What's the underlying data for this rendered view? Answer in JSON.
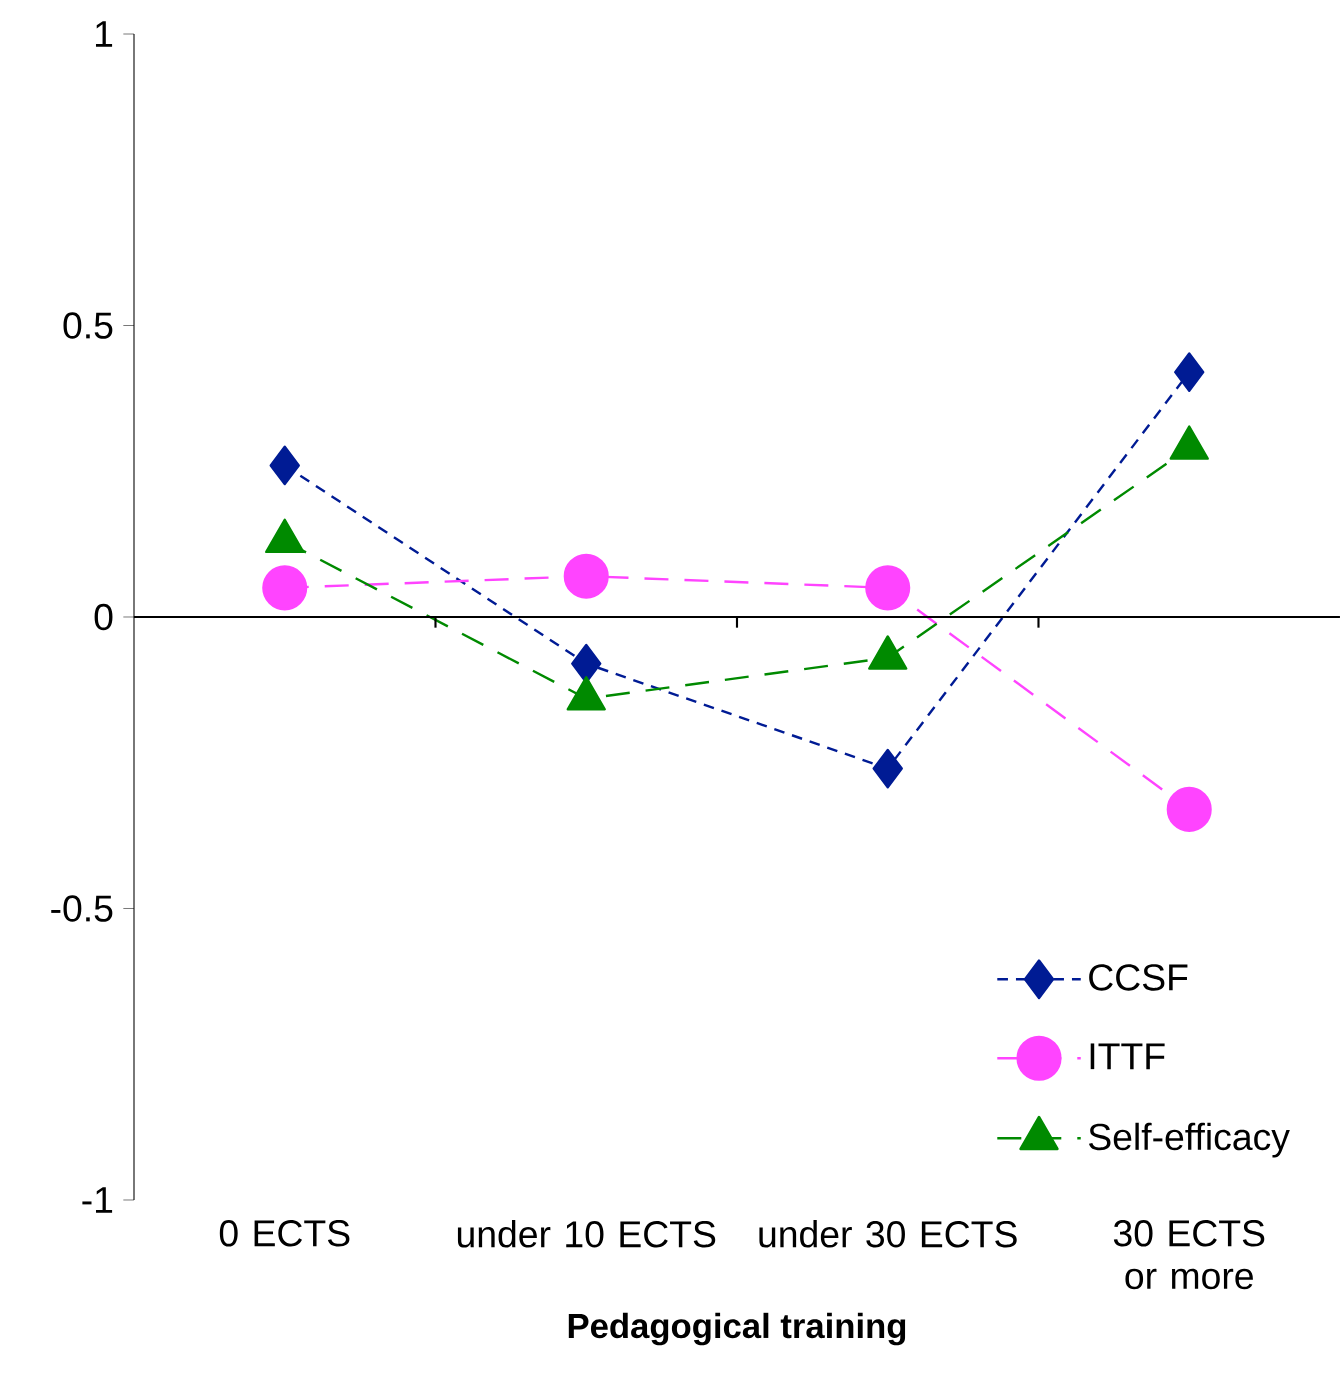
{
  "chart_data": {
    "type": "line",
    "xlabel": "Pedagogical training",
    "categories": [
      "0 ECTS",
      "under 10 ECTS",
      "under 30 ECTS",
      "30 ECTS or more"
    ],
    "ylim": [
      -1,
      1
    ],
    "yticks": [
      -1,
      -0.5,
      0,
      0.5,
      1
    ],
    "legend": "bottom right",
    "series": [
      {
        "name": "CCSF",
        "color": "#001b94",
        "marker": "diamond",
        "line_style": "dotted",
        "values": [
          0.26,
          -0.08,
          -0.26,
          0.42
        ]
      },
      {
        "name": "ITTF",
        "color": "#ff44ff",
        "marker": "circle",
        "line_style": "dashed",
        "values": [
          0.05,
          0.07,
          0.05,
          -0.33
        ]
      },
      {
        "name": "Self-efficacy",
        "color": "#008a00",
        "marker": "triangle",
        "line_style": "dashed",
        "values": [
          0.13,
          -0.14,
          -0.07,
          0.29
        ]
      }
    ]
  }
}
